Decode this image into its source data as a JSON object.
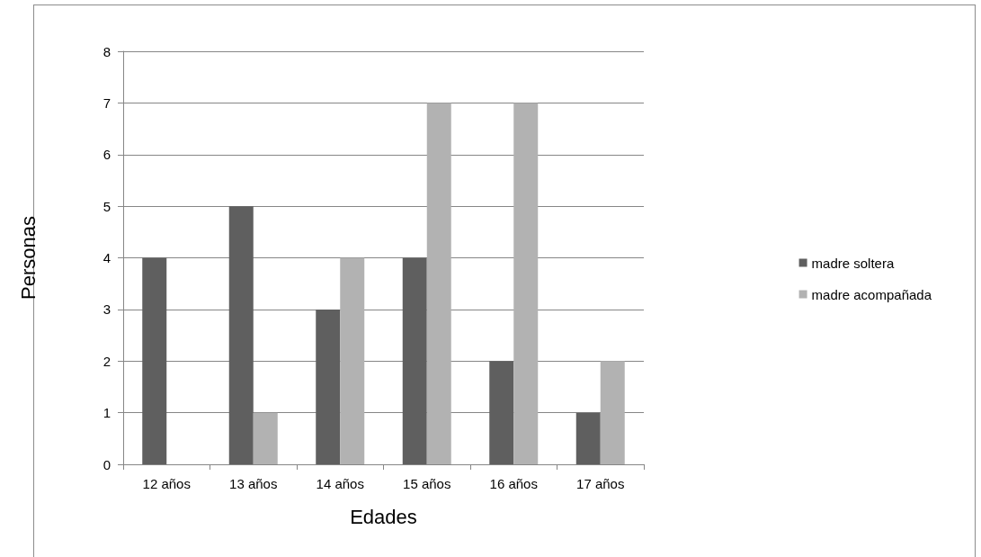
{
  "chart_data": {
    "type": "bar",
    "xlabel": "Edades",
    "ylabel": "Personas",
    "categories": [
      "12 años",
      "13 años",
      "14 años",
      "15 años",
      "16 años",
      "17 años"
    ],
    "series": [
      {
        "name": "madre soltera",
        "color": "#5f5f5f",
        "values": [
          4,
          5,
          3,
          4,
          2,
          1
        ]
      },
      {
        "name": "madre acompañada",
        "color": "#b2b2b2",
        "values": [
          0,
          1,
          4,
          7,
          7,
          2
        ]
      }
    ],
    "ylim": [
      0,
      8
    ],
    "yticks": [
      0,
      1,
      2,
      3,
      4,
      5,
      6,
      7,
      8
    ],
    "grid": "y",
    "legend": "right"
  }
}
